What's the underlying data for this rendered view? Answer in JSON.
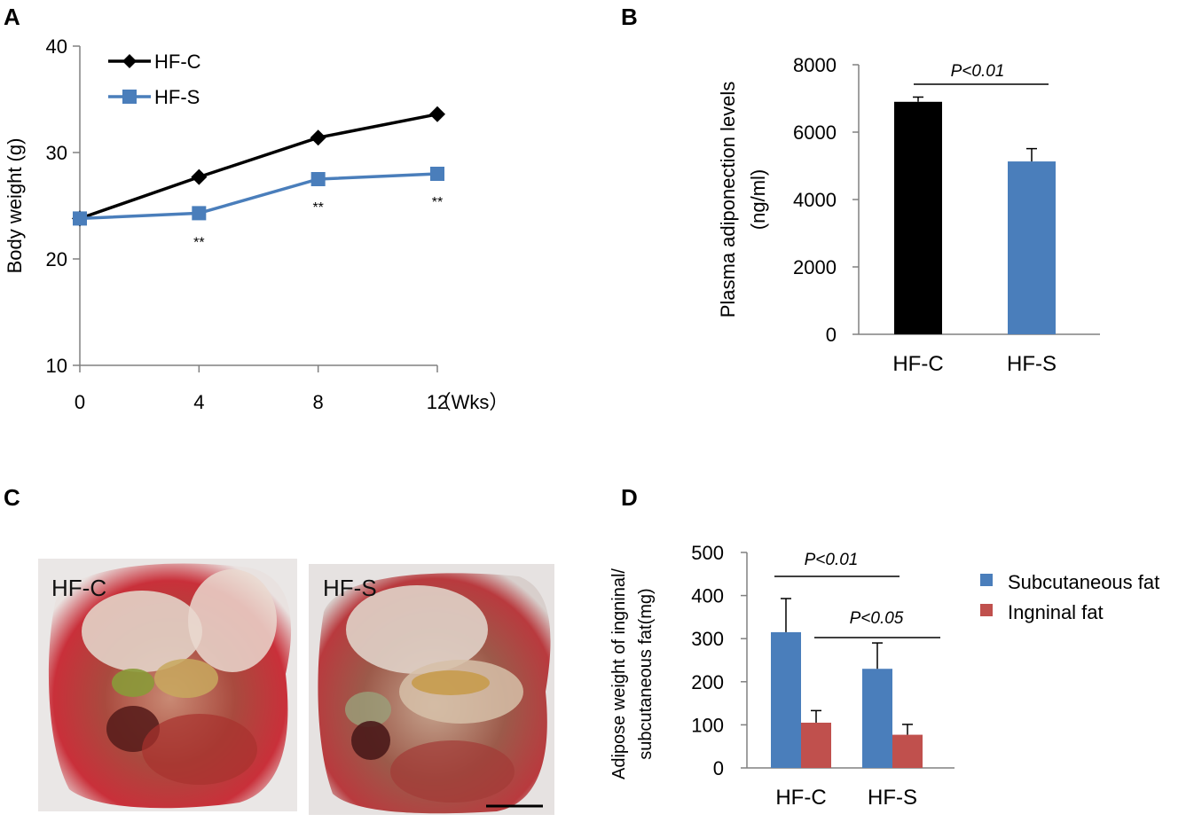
{
  "panels": {
    "a": "A",
    "b": "B",
    "c": "C",
    "d": "D"
  },
  "chart_data": [
    {
      "id": "A",
      "type": "line",
      "x": [
        0,
        4,
        8,
        12
      ],
      "xticks": [
        "0",
        "4",
        "8",
        "12"
      ],
      "xunit": "（Wks）",
      "xlim": [
        0,
        12
      ],
      "ylabel": "Body weight (g)",
      "ylim": [
        10,
        40
      ],
      "yticks": [
        "10",
        "20",
        "30",
        "40"
      ],
      "series": [
        {
          "name": "HF-C",
          "values": [
            23.8,
            27.7,
            31.4,
            33.6
          ],
          "color": "#000000",
          "marker": "diamond"
        },
        {
          "name": "HF-S",
          "values": [
            23.8,
            24.3,
            27.5,
            28.0
          ],
          "color": "#4a7ebb",
          "marker": "square"
        }
      ],
      "significance": [
        {
          "x": 4,
          "label": "**"
        },
        {
          "x": 8,
          "label": "**"
        },
        {
          "x": 12,
          "label": "**"
        }
      ],
      "legend": "top-left"
    },
    {
      "id": "B",
      "type": "bar",
      "categories": [
        "HF-C",
        "HF-S"
      ],
      "values": [
        6900,
        5130
      ],
      "errors": [
        140,
        380
      ],
      "colors": [
        "#000000",
        "#4a7ebb"
      ],
      "ylabel_line1": "Plasma adiponection levels",
      "ylabel_line2": "(ng/ml)",
      "ylim": [
        0,
        8000
      ],
      "yticks": [
        "0",
        "2000",
        "4000",
        "6000",
        "8000"
      ],
      "annotation": "P<0.01"
    },
    {
      "id": "D",
      "type": "bar",
      "categories": [
        "HF-C",
        "HF-S"
      ],
      "series": [
        {
          "name": "Subcutaneous fat",
          "values": [
            315,
            230
          ],
          "errors": [
            78,
            60
          ],
          "color": "#4a7ebb"
        },
        {
          "name": "Ingninal fat",
          "values": [
            105,
            77
          ],
          "errors": [
            28,
            24
          ],
          "color": "#c0504d"
        }
      ],
      "ylabel_line1": "Adipose weight of ingninal/",
      "ylabel_line2": "subcutaneous  fat(mg)",
      "ylim": [
        0,
        500
      ],
      "yticks": [
        "0",
        "100",
        "200",
        "300",
        "400",
        "500"
      ],
      "annotations": [
        "P<0.01",
        "P<0.05"
      ],
      "legend": "right"
    }
  ],
  "photo": {
    "left_label": "HF-C",
    "right_label": "HF-S"
  }
}
